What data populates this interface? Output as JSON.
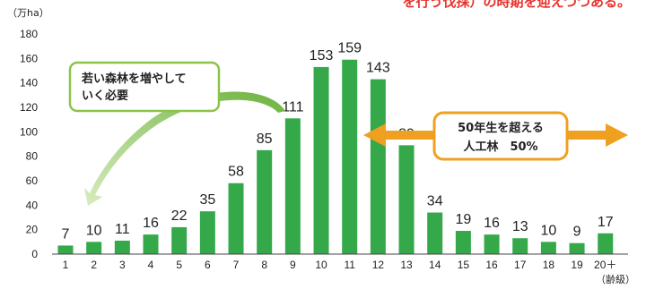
{
  "header_text": "を行う伐採）の時期を迎えつつある。",
  "chart_data": {
    "type": "bar",
    "categories": [
      "1",
      "2",
      "3",
      "4",
      "5",
      "6",
      "7",
      "8",
      "9",
      "10",
      "11",
      "12",
      "13",
      "14",
      "15",
      "16",
      "17",
      "18",
      "19",
      "20＋"
    ],
    "values": [
      7,
      10,
      11,
      16,
      22,
      35,
      58,
      85,
      111,
      153,
      159,
      143,
      89,
      34,
      19,
      16,
      13,
      10,
      9,
      17
    ],
    "ylabel": "（万ha）",
    "xlabel": "（齢級）",
    "ylim": [
      0,
      180
    ],
    "yticks": [
      0,
      20,
      40,
      60,
      80,
      100,
      120,
      140,
      160,
      180
    ],
    "bar_color": "#35a84a",
    "annotations": {
      "young_forest": [
        "若い森林を増やして",
        "いく必要"
      ],
      "over_50": [
        "50年生を超える",
        "人工林　50%"
      ]
    },
    "colors": {
      "young_box_border": "#8cc34a",
      "over50_box_border": "#f0a020",
      "over50_arrow": "#f0a020",
      "curve_arrow": "#8cc34a"
    }
  }
}
